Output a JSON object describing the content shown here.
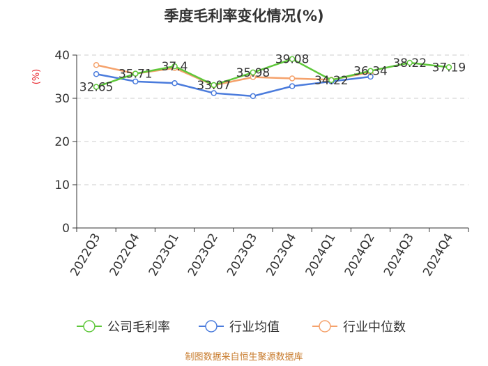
{
  "chart_data": {
    "type": "line",
    "title": "季度毛利率变化情况(%)",
    "ylabel": "(%)",
    "ylim": [
      0,
      40
    ],
    "yticks": [
      0,
      10,
      20,
      30,
      40
    ],
    "grid": true,
    "legend_position": "bottom",
    "categories": [
      "2022Q3",
      "2022Q4",
      "2023Q1",
      "2023Q2",
      "2023Q3",
      "2023Q4",
      "2024Q1",
      "2024Q2",
      "2024Q3",
      "2024Q4"
    ],
    "series": [
      {
        "name": "公司毛利率",
        "color": "#5ec73a",
        "show_labels": true,
        "values": [
          32.65,
          35.71,
          37.4,
          33.07,
          35.98,
          39.08,
          34.22,
          36.34,
          38.22,
          37.19
        ]
      },
      {
        "name": "行业均值",
        "color": "#4a7bdc",
        "show_labels": false,
        "values": [
          35.6,
          33.9,
          33.5,
          31.2,
          30.5,
          32.8,
          33.9,
          35.0,
          null,
          null
        ]
      },
      {
        "name": "行业中位数",
        "color": "#f5a26c",
        "show_labels": false,
        "values": [
          37.7,
          35.7,
          37.0,
          33.0,
          34.9,
          34.6,
          34.3,
          36.0,
          null,
          null
        ]
      }
    ]
  },
  "footer": {
    "source": "制图数据来自恒生聚源数据库"
  }
}
